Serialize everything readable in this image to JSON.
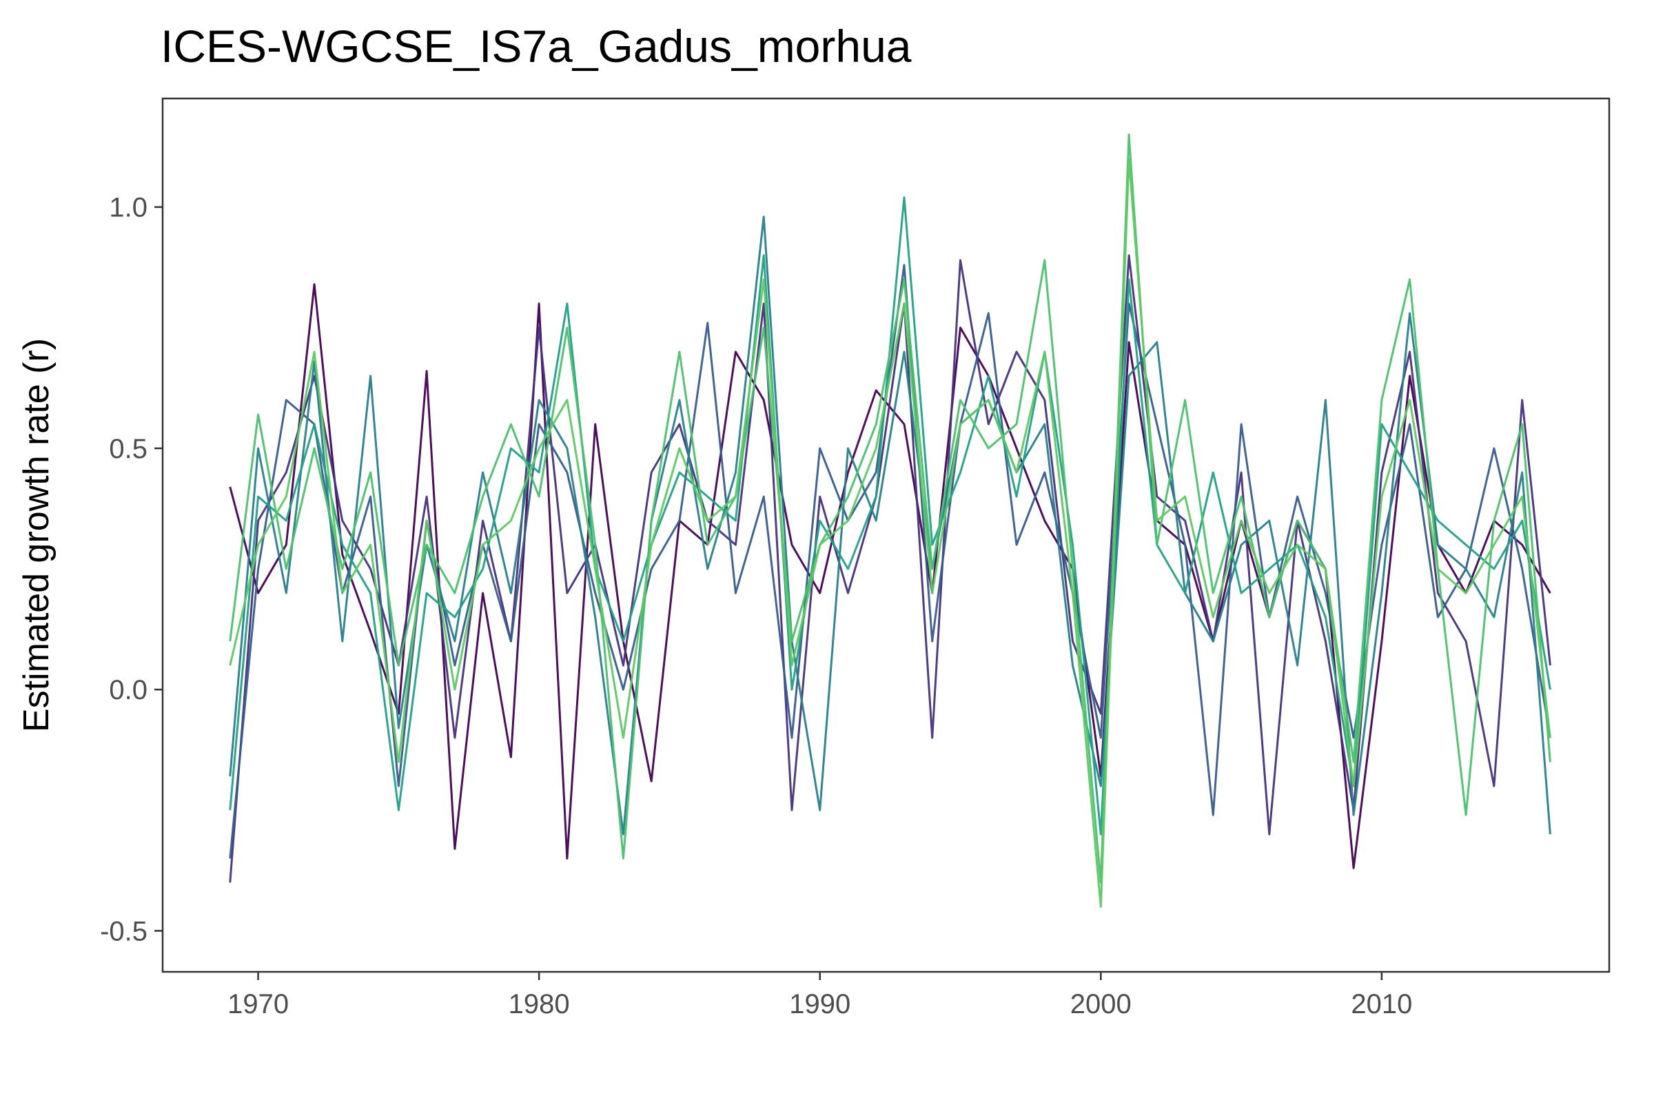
{
  "chart_data": {
    "type": "line",
    "title": "ICES-WGCSE_IS7a_Gadus_morhua",
    "xlabel": "",
    "ylabel": "Estimated growth rate (r)",
    "xlim": [
      1966.6,
      2018.1
    ],
    "ylim": [
      -0.585,
      1.225
    ],
    "x_ticks": [
      1970,
      1980,
      1990,
      2000,
      2010
    ],
    "x_tick_labels": [
      "1970",
      "1980",
      "1990",
      "2000",
      "2010"
    ],
    "y_ticks": [
      -0.5,
      0.0,
      0.5,
      1.0
    ],
    "y_tick_labels": [
      "-0.5",
      "0.0",
      "0.5",
      "1.0"
    ],
    "grid": false,
    "legend": "none",
    "colormap": "viridis (#440154 to #5ec962)",
    "colors": [
      "#440154",
      "#46327e",
      "#365c8d",
      "#277f8e",
      "#1fa187",
      "#4ac16d",
      "#5ec962"
    ],
    "x": [
      1969,
      1970,
      1971,
      1972,
      1973,
      1974,
      1975,
      1976,
      1977,
      1978,
      1979,
      1980,
      1981,
      1982,
      1983,
      1984,
      1985,
      1986,
      1987,
      1988,
      1989,
      1990,
      1991,
      1992,
      1993,
      1994,
      1995,
      1996,
      1997,
      1998,
      1999,
      2000,
      2001,
      2002,
      2003,
      2004,
      2005,
      2006,
      2007,
      2008,
      2009,
      2010,
      2011,
      2012,
      2013,
      2014,
      2015,
      2016
    ],
    "series": [
      {
        "color": "#440154",
        "values": [
          0.42,
          0.2,
          0.3,
          0.84,
          0.28,
          0.12,
          -0.05,
          0.66,
          -0.33,
          0.2,
          -0.14,
          0.8,
          -0.35,
          0.55,
          0.1,
          -0.19,
          0.35,
          0.3,
          0.7,
          0.6,
          0.3,
          0.2,
          0.45,
          0.62,
          0.55,
          0.2,
          0.75,
          0.65,
          0.5,
          0.35,
          0.25,
          -0.18,
          0.72,
          0.35,
          0.3,
          0.1,
          0.35,
          0.15,
          0.35,
          0.25,
          -0.37,
          0.1,
          0.65,
          0.3,
          0.2,
          0.35,
          0.3,
          0.2
        ]
      },
      {
        "color": "#46327e",
        "values": [
          -0.4,
          0.35,
          0.45,
          0.65,
          0.35,
          0.25,
          0.05,
          0.4,
          -0.1,
          0.35,
          0.1,
          0.75,
          0.2,
          0.3,
          0.05,
          0.45,
          0.55,
          0.35,
          0.3,
          0.8,
          -0.25,
          0.4,
          0.2,
          0.4,
          0.8,
          -0.1,
          0.89,
          0.55,
          0.7,
          0.6,
          0.1,
          -0.05,
          0.9,
          0.4,
          0.35,
          0.1,
          0.45,
          -0.3,
          0.35,
          0.1,
          -0.25,
          0.45,
          0.7,
          0.2,
          0.1,
          -0.2,
          0.6,
          0.05
        ]
      },
      {
        "color": "#365c8d",
        "values": [
          -0.35,
          0.25,
          0.6,
          0.55,
          0.2,
          0.4,
          -0.2,
          0.35,
          0.05,
          0.3,
          0.1,
          0.55,
          0.45,
          0.2,
          0.0,
          0.25,
          0.35,
          0.76,
          0.2,
          0.4,
          -0.1,
          0.5,
          0.35,
          0.45,
          0.88,
          0.1,
          0.55,
          0.78,
          0.3,
          0.45,
          0.2,
          -0.1,
          0.8,
          0.55,
          0.3,
          -0.26,
          0.55,
          0.15,
          0.4,
          0.2,
          -0.1,
          0.3,
          0.55,
          0.15,
          0.25,
          0.5,
          0.25,
          -0.1
        ]
      },
      {
        "color": "#277f8e",
        "values": [
          -0.18,
          0.5,
          0.2,
          0.68,
          0.1,
          0.65,
          -0.08,
          0.3,
          0.1,
          0.45,
          0.2,
          0.6,
          0.5,
          0.15,
          -0.3,
          0.35,
          0.6,
          0.25,
          0.45,
          0.98,
          0.1,
          -0.25,
          0.5,
          0.35,
          0.7,
          0.25,
          0.55,
          0.6,
          0.45,
          0.55,
          0.05,
          -0.2,
          0.65,
          0.72,
          0.2,
          0.1,
          0.3,
          0.35,
          0.05,
          0.6,
          -0.26,
          0.2,
          0.78,
          0.3,
          0.25,
          0.15,
          0.45,
          -0.3
        ]
      },
      {
        "color": "#1fa187",
        "values": [
          -0.25,
          0.4,
          0.35,
          0.55,
          0.3,
          0.2,
          -0.25,
          0.2,
          0.15,
          0.25,
          0.5,
          0.45,
          0.8,
          0.25,
          0.1,
          0.3,
          0.45,
          0.4,
          0.35,
          0.9,
          0.0,
          0.35,
          0.25,
          0.4,
          1.02,
          0.3,
          0.45,
          0.65,
          0.4,
          0.7,
          0.3,
          -0.3,
          0.85,
          0.3,
          0.2,
          0.45,
          0.2,
          0.25,
          0.3,
          0.15,
          -0.2,
          0.55,
          0.45,
          0.35,
          0.3,
          0.25,
          0.35,
          0.0
        ]
      },
      {
        "color": "#4ac16d",
        "values": [
          0.1,
          0.57,
          0.25,
          0.5,
          0.25,
          0.45,
          0.05,
          0.3,
          0.2,
          0.4,
          0.55,
          0.4,
          0.75,
          0.3,
          -0.35,
          0.35,
          0.7,
          0.3,
          0.4,
          0.75,
          0.1,
          0.3,
          0.4,
          0.55,
          0.85,
          0.25,
          0.6,
          0.5,
          0.55,
          0.89,
          0.25,
          -0.4,
          1.15,
          0.3,
          0.6,
          0.2,
          0.4,
          0.15,
          0.35,
          0.25,
          -0.15,
          0.6,
          0.85,
          0.25,
          -0.26,
          0.35,
          0.55,
          -0.15
        ]
      },
      {
        "color": "#5ec962",
        "values": [
          0.05,
          0.3,
          0.4,
          0.7,
          0.2,
          0.3,
          -0.15,
          0.35,
          0.0,
          0.3,
          0.35,
          0.5,
          0.6,
          0.25,
          -0.1,
          0.3,
          0.5,
          0.35,
          0.4,
          0.85,
          0.05,
          0.3,
          0.35,
          0.5,
          0.8,
          0.2,
          0.55,
          0.6,
          0.45,
          0.7,
          0.2,
          -0.45,
          1.1,
          0.35,
          0.4,
          0.15,
          0.35,
          0.2,
          0.3,
          0.25,
          -0.2,
          0.4,
          0.6,
          0.25,
          0.2,
          0.3,
          0.4,
          -0.1
        ]
      }
    ]
  }
}
